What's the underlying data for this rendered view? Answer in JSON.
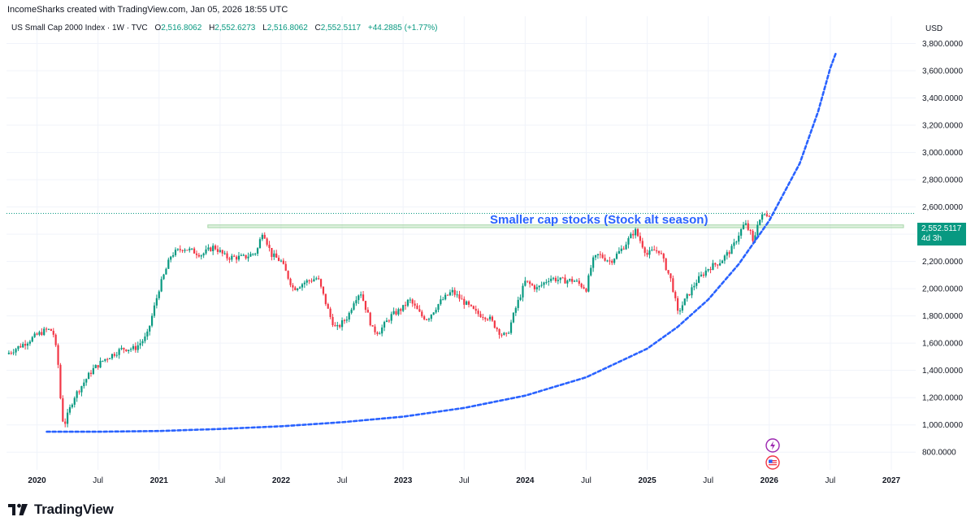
{
  "header": {
    "credit": "IncomeSharks created with TradingView.com, Jan 05, 2026 18:55 UTC",
    "symbol": "US Small Cap 2000 Index · 1W · TVC",
    "o_label": "O",
    "o_value": "2,516.8062",
    "h_label": "H",
    "h_value": "2,552.6273",
    "l_label": "L",
    "l_value": "2,516.8062",
    "c_label": "C",
    "c_value": "2,552.5117",
    "change": "+44.2885 (+1.77%)",
    "currency": "USD"
  },
  "price_tag": {
    "price": "2,552.5117",
    "countdown": "4d 3h"
  },
  "brand": {
    "name": "TradingView"
  },
  "colors": {
    "up": "#089981",
    "down": "#F23645",
    "curve": "#2962FF",
    "annotation": "#2962FF",
    "zone": "#a5d6a7",
    "grid": "#f0f3fa"
  },
  "events": [
    {
      "icon": "lightning-icon",
      "color": "#9c27b0"
    },
    {
      "icon": "us-flag-icon",
      "color": "#F23645"
    }
  ],
  "chart_data": {
    "type": "candlestick",
    "annotation": "Smaller cap stocks (Stock alt season)",
    "x_tick_labels": [
      "2020",
      "Jul",
      "2021",
      "Jul",
      "2022",
      "Jul",
      "2023",
      "Jul",
      "2024",
      "Jul",
      "2025",
      "Jul",
      "2026",
      "Jul",
      "2027"
    ],
    "x_ticks": [
      2020.0,
      2020.5,
      2021.0,
      2021.5,
      2022.0,
      2022.5,
      2023.0,
      2023.5,
      2024.0,
      2024.5,
      2025.0,
      2025.5,
      2026.0,
      2026.5,
      2027.0
    ],
    "x_bold": [
      "2020",
      "2021",
      "2022",
      "2023",
      "2024",
      "2025",
      "2026",
      "2027"
    ],
    "y_ticks": [
      800,
      1000,
      1200,
      1400,
      1600,
      1800,
      2000,
      2200,
      2400,
      2600,
      2800,
      3000,
      3200,
      3400,
      3600,
      3800
    ],
    "y_tick_labels": [
      "800.0000",
      "1,000.0000",
      "1,200.0000",
      "1,400.0000",
      "1,600.0000",
      "1,800.0000",
      "2,000.0000",
      "2,200.0000",
      "2,400.0000",
      "2,600.0000",
      "2,800.0000",
      "3,000.0000",
      "3,200.0000",
      "3,400.0000",
      "3,600.0000",
      "3,800.0000"
    ],
    "x_range": [
      2019.75,
      2027.1
    ],
    "y_range": [
      670,
      4000
    ],
    "last_price": 2552.5117,
    "resistance_zone": {
      "x_start": 2021.4,
      "x_end": 2027.1,
      "y_low": 2448,
      "y_high": 2468
    },
    "price_path": [
      [
        2019.75,
        1520
      ],
      [
        2019.9,
        1600
      ],
      [
        2020.0,
        1660
      ],
      [
        2020.08,
        1700
      ],
      [
        2020.13,
        1690
      ],
      [
        2020.17,
        1480
      ],
      [
        2020.2,
        1100
      ],
      [
        2020.22,
        990
      ],
      [
        2020.3,
        1200
      ],
      [
        2020.45,
        1400
      ],
      [
        2020.55,
        1480
      ],
      [
        2020.7,
        1560
      ],
      [
        2020.8,
        1560
      ],
      [
        2020.9,
        1650
      ],
      [
        2021.0,
        2000
      ],
      [
        2021.1,
        2250
      ],
      [
        2021.2,
        2300
      ],
      [
        2021.35,
        2250
      ],
      [
        2021.45,
        2310
      ],
      [
        2021.55,
        2230
      ],
      [
        2021.7,
        2230
      ],
      [
        2021.8,
        2270
      ],
      [
        2021.85,
        2430
      ],
      [
        2021.92,
        2250
      ],
      [
        2022.0,
        2200
      ],
      [
        2022.1,
        2000
      ],
      [
        2022.2,
        2050
      ],
      [
        2022.3,
        2080
      ],
      [
        2022.4,
        1800
      ],
      [
        2022.45,
        1700
      ],
      [
        2022.55,
        1800
      ],
      [
        2022.6,
        1920
      ],
      [
        2022.65,
        1980
      ],
      [
        2022.75,
        1700
      ],
      [
        2022.8,
        1680
      ],
      [
        2022.9,
        1800
      ],
      [
        2023.0,
        1860
      ],
      [
        2023.05,
        1920
      ],
      [
        2023.15,
        1800
      ],
      [
        2023.2,
        1780
      ],
      [
        2023.3,
        1900
      ],
      [
        2023.4,
        1980
      ],
      [
        2023.5,
        1900
      ],
      [
        2023.6,
        1820
      ],
      [
        2023.7,
        1790
      ],
      [
        2023.8,
        1670
      ],
      [
        2023.85,
        1650
      ],
      [
        2023.92,
        1850
      ],
      [
        2024.0,
        2050
      ],
      [
        2024.1,
        2000
      ],
      [
        2024.2,
        2080
      ],
      [
        2024.3,
        2060
      ],
      [
        2024.4,
        2060
      ],
      [
        2024.5,
        2000
      ],
      [
        2024.55,
        2200
      ],
      [
        2024.6,
        2250
      ],
      [
        2024.7,
        2200
      ],
      [
        2024.8,
        2300
      ],
      [
        2024.9,
        2430
      ],
      [
        2025.0,
        2250
      ],
      [
        2025.05,
        2280
      ],
      [
        2025.1,
        2280
      ],
      [
        2025.2,
        2050
      ],
      [
        2025.25,
        1820
      ],
      [
        2025.3,
        1900
      ],
      [
        2025.4,
        2050
      ],
      [
        2025.5,
        2150
      ],
      [
        2025.6,
        2200
      ],
      [
        2025.7,
        2300
      ],
      [
        2025.75,
        2400
      ],
      [
        2025.8,
        2480
      ],
      [
        2025.85,
        2400
      ],
      [
        2025.87,
        2320
      ],
      [
        2025.9,
        2480
      ],
      [
        2025.95,
        2540
      ],
      [
        2026.0,
        2552
      ]
    ],
    "curve": [
      [
        2020.08,
        950
      ],
      [
        2020.5,
        950
      ],
      [
        2021.0,
        955
      ],
      [
        2021.5,
        970
      ],
      [
        2022.0,
        990
      ],
      [
        2022.5,
        1020
      ],
      [
        2023.0,
        1060
      ],
      [
        2023.5,
        1125
      ],
      [
        2024.0,
        1215
      ],
      [
        2024.5,
        1350
      ],
      [
        2025.0,
        1560
      ],
      [
        2025.25,
        1720
      ],
      [
        2025.5,
        1920
      ],
      [
        2025.75,
        2180
      ],
      [
        2026.0,
        2500
      ],
      [
        2026.25,
        2920
      ],
      [
        2026.4,
        3300
      ],
      [
        2026.5,
        3620
      ],
      [
        2026.55,
        3740
      ]
    ]
  }
}
